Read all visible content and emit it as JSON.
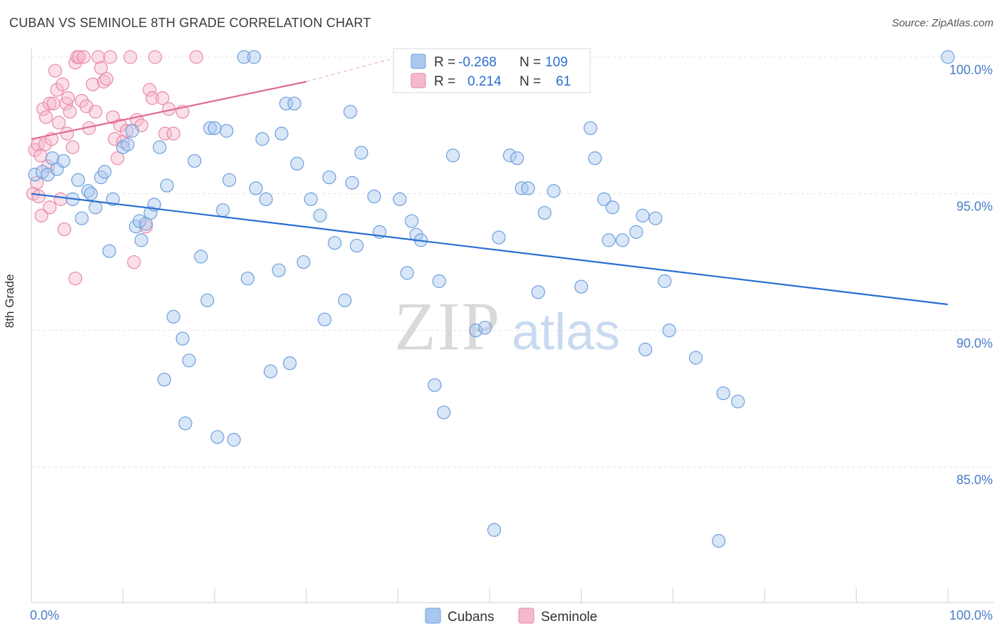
{
  "header": {
    "title": "CUBAN VS SEMINOLE 8TH GRADE CORRELATION CHART",
    "source": "Source: ZipAtlas.com"
  },
  "watermark": {
    "zip": "ZIP",
    "atlas": "atlas"
  },
  "chart_data": {
    "type": "scatter",
    "ylabel": "8th Grade",
    "x_tick_labels": [
      "0.0%",
      "100.0%"
    ],
    "y_tick_labels": [
      "100.0%",
      "95.0%",
      "90.0%",
      "85.0%"
    ],
    "xlim": [
      0,
      100
    ],
    "ylim": [
      80.5,
      100.5
    ],
    "y_ticks": [
      100,
      95,
      90,
      85
    ],
    "legend_placement": "top-center",
    "bottom_legend": [
      "Cubans",
      "Seminole"
    ],
    "colors": {
      "cubans_fill": "#a9c8ef",
      "cubans_stroke": "#6f9fdc",
      "cubans_line": "#2a6fd1",
      "seminole_fill": "#f6b8cb",
      "seminole_stroke": "#e88aa8",
      "seminole_line": "#e06b94",
      "grid": "#e4e4e4",
      "tick": "#4a7cc9"
    },
    "series": [
      {
        "name": "Cubans",
        "R": "-0.268",
        "N": "109",
        "trend": {
          "x0": 0,
          "y0": 95.0,
          "x1": 100,
          "y1": 90.95
        },
        "points": [
          [
            0.4,
            95.7
          ],
          [
            1.2,
            95.8
          ],
          [
            1.8,
            95.7
          ],
          [
            2.3,
            96.3
          ],
          [
            2.8,
            95.9
          ],
          [
            3.5,
            96.2
          ],
          [
            4.5,
            94.8
          ],
          [
            5.1,
            95.5
          ],
          [
            5.5,
            94.1
          ],
          [
            6.2,
            95.1
          ],
          [
            6.5,
            95.0
          ],
          [
            7.0,
            94.5
          ],
          [
            7.6,
            95.6
          ],
          [
            8.0,
            95.8
          ],
          [
            8.5,
            92.9
          ],
          [
            8.9,
            94.8
          ],
          [
            10.0,
            96.7
          ],
          [
            10.5,
            96.8
          ],
          [
            11.0,
            97.3
          ],
          [
            11.4,
            93.8
          ],
          [
            11.8,
            94.0
          ],
          [
            12.0,
            93.3
          ],
          [
            12.5,
            93.9
          ],
          [
            13.0,
            94.3
          ],
          [
            13.4,
            94.6
          ],
          [
            14.0,
            96.7
          ],
          [
            14.5,
            88.2
          ],
          [
            14.8,
            95.3
          ],
          [
            15.5,
            90.5
          ],
          [
            16.5,
            89.7
          ],
          [
            16.8,
            86.6
          ],
          [
            17.2,
            88.9
          ],
          [
            17.8,
            96.2
          ],
          [
            18.5,
            92.7
          ],
          [
            19.2,
            91.1
          ],
          [
            19.5,
            97.4
          ],
          [
            20.0,
            97.4
          ],
          [
            20.3,
            86.1
          ],
          [
            20.9,
            94.4
          ],
          [
            21.3,
            97.3
          ],
          [
            21.6,
            95.5
          ],
          [
            22.1,
            86.0
          ],
          [
            23.2,
            100.0
          ],
          [
            23.6,
            91.9
          ],
          [
            24.3,
            100.0
          ],
          [
            24.5,
            95.2
          ],
          [
            25.2,
            97.0
          ],
          [
            25.6,
            94.8
          ],
          [
            26.1,
            88.5
          ],
          [
            27.0,
            92.2
          ],
          [
            27.3,
            97.2
          ],
          [
            27.8,
            98.3
          ],
          [
            28.2,
            88.8
          ],
          [
            28.7,
            98.3
          ],
          [
            29.0,
            96.1
          ],
          [
            29.7,
            92.5
          ],
          [
            30.5,
            94.8
          ],
          [
            31.5,
            94.2
          ],
          [
            32.0,
            90.4
          ],
          [
            32.5,
            95.6
          ],
          [
            33.1,
            93.2
          ],
          [
            34.2,
            91.1
          ],
          [
            34.8,
            98.0
          ],
          [
            35.0,
            95.4
          ],
          [
            35.5,
            93.1
          ],
          [
            36.0,
            96.5
          ],
          [
            37.4,
            94.9
          ],
          [
            38.0,
            93.6
          ],
          [
            40.2,
            94.8
          ],
          [
            41.0,
            92.1
          ],
          [
            41.5,
            94.0
          ],
          [
            42.0,
            93.5
          ],
          [
            42.5,
            93.3
          ],
          [
            44.0,
            88.0
          ],
          [
            44.5,
            91.8
          ],
          [
            45.0,
            87.0
          ],
          [
            46.0,
            96.4
          ],
          [
            48.5,
            90.0
          ],
          [
            49.5,
            90.1
          ],
          [
            50.5,
            82.7
          ],
          [
            51.0,
            93.4
          ],
          [
            52.2,
            96.4
          ],
          [
            53.0,
            96.3
          ],
          [
            53.5,
            95.2
          ],
          [
            54.2,
            95.2
          ],
          [
            55.3,
            91.4
          ],
          [
            56.0,
            94.3
          ],
          [
            57.0,
            95.1
          ],
          [
            60.0,
            91.6
          ],
          [
            61.0,
            97.4
          ],
          [
            61.5,
            96.3
          ],
          [
            62.5,
            94.8
          ],
          [
            63.0,
            93.3
          ],
          [
            63.4,
            94.5
          ],
          [
            64.5,
            93.3
          ],
          [
            66.0,
            93.6
          ],
          [
            67.0,
            89.3
          ],
          [
            66.7,
            94.2
          ],
          [
            68.1,
            94.1
          ],
          [
            69.1,
            91.8
          ],
          [
            69.6,
            90.0
          ],
          [
            72.5,
            89.0
          ],
          [
            75.0,
            82.3
          ],
          [
            75.5,
            87.7
          ],
          [
            77.1,
            87.4
          ],
          [
            100.0,
            100.0
          ]
        ]
      },
      {
        "name": "Seminole",
        "R": "0.214",
        "N": "61",
        "trend": {
          "x0": 0,
          "y0": 97.0,
          "x1": 30,
          "y1": 99.1
        },
        "trend_dashed": {
          "x0": 30,
          "y0": 99.1,
          "x1": 39.5,
          "y1": 99.95
        },
        "points": [
          [
            0.2,
            95.0
          ],
          [
            0.4,
            96.6
          ],
          [
            0.6,
            95.4
          ],
          [
            0.7,
            96.8
          ],
          [
            0.8,
            94.9
          ],
          [
            1.0,
            96.4
          ],
          [
            1.1,
            94.2
          ],
          [
            1.3,
            98.1
          ],
          [
            1.5,
            96.8
          ],
          [
            1.6,
            97.8
          ],
          [
            1.8,
            96.0
          ],
          [
            2.0,
            98.3
          ],
          [
            2.2,
            97.0
          ],
          [
            2.4,
            98.3
          ],
          [
            2.6,
            99.5
          ],
          [
            2.8,
            98.8
          ],
          [
            3.0,
            97.6
          ],
          [
            3.2,
            94.8
          ],
          [
            3.4,
            99.0
          ],
          [
            3.6,
            93.7
          ],
          [
            3.8,
            98.3
          ],
          [
            3.9,
            97.2
          ],
          [
            4.0,
            98.5
          ],
          [
            4.2,
            98.0
          ],
          [
            4.5,
            96.7
          ],
          [
            4.8,
            99.8
          ],
          [
            5.0,
            100.0
          ],
          [
            5.2,
            100.0
          ],
          [
            5.5,
            98.4
          ],
          [
            5.7,
            100.0
          ],
          [
            6.0,
            98.2
          ],
          [
            6.3,
            97.4
          ],
          [
            6.7,
            99.0
          ],
          [
            7.0,
            98.0
          ],
          [
            7.3,
            100.0
          ],
          [
            7.6,
            99.6
          ],
          [
            7.9,
            99.1
          ],
          [
            8.2,
            99.2
          ],
          [
            8.6,
            100.0
          ],
          [
            8.9,
            97.8
          ],
          [
            9.1,
            97.0
          ],
          [
            9.4,
            96.3
          ],
          [
            9.7,
            97.5
          ],
          [
            10.0,
            96.9
          ],
          [
            10.4,
            97.3
          ],
          [
            10.8,
            100.0
          ],
          [
            11.2,
            92.5
          ],
          [
            11.5,
            97.7
          ],
          [
            12.0,
            97.5
          ],
          [
            12.5,
            93.8
          ],
          [
            12.9,
            98.8
          ],
          [
            13.2,
            98.5
          ],
          [
            13.5,
            100.0
          ],
          [
            14.3,
            98.5
          ],
          [
            14.6,
            97.2
          ],
          [
            15.0,
            98.1
          ],
          [
            15.5,
            97.2
          ],
          [
            16.5,
            98.0
          ],
          [
            18.0,
            100.0
          ],
          [
            4.8,
            91.9
          ],
          [
            2.0,
            94.5
          ]
        ]
      }
    ]
  }
}
